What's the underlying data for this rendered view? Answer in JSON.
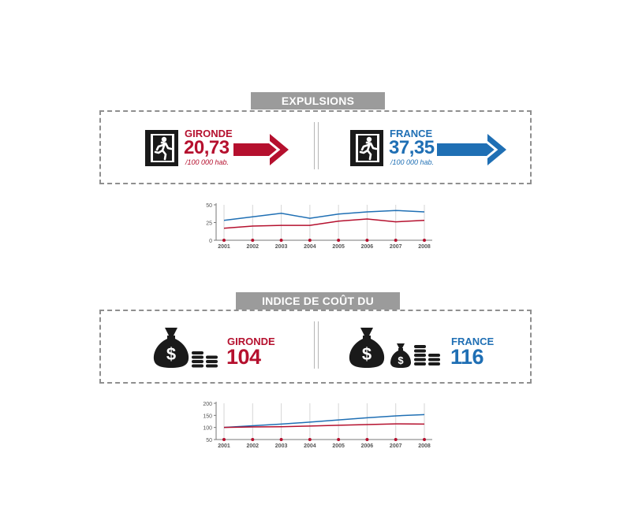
{
  "colors": {
    "gironde": "#b5102e",
    "france": "#1f6fb4",
    "gray": "#9b9b9b",
    "dark": "#1a1a1a"
  },
  "expulsions": {
    "title": "EXPULSIONS LOCATIVES",
    "gironde": {
      "name": "GIRONDE",
      "value": "20,73",
      "unit": "/100 000 hab."
    },
    "france": {
      "name": "FRANCE",
      "value": "37,35",
      "unit": "/100 000 hab."
    }
  },
  "indice": {
    "title": "INDICE DE COÛT DU LOGEMENT",
    "gironde": {
      "name": "GIRONDE",
      "value": "104"
    },
    "france": {
      "name": "FRANCE",
      "value": "116"
    }
  },
  "icons": {
    "exit": "emergency-exit-icon",
    "money": "money-bag-icon",
    "coins": "coin-stack-icon",
    "arrow": "right-arrow-icon"
  },
  "chart_data": [
    {
      "type": "line",
      "categories": [
        "2001",
        "2002",
        "2003",
        "2004",
        "2005",
        "2006",
        "2007",
        "2008"
      ],
      "yticks": [
        "0",
        "25",
        "50"
      ],
      "ylim": [
        0,
        50
      ],
      "series": [
        {
          "name": "FRANCE",
          "color": "#1f6fb4",
          "values": [
            28,
            33,
            38,
            31,
            37,
            40,
            42,
            40
          ]
        },
        {
          "name": "GIRONDE",
          "color": "#b5102e",
          "values": [
            17,
            20,
            21,
            21,
            27,
            30,
            26,
            28
          ]
        }
      ]
    },
    {
      "type": "line",
      "categories": [
        "2001",
        "2002",
        "2003",
        "2004",
        "2005",
        "2006",
        "2007",
        "2008"
      ],
      "yticks": [
        "50",
        "100",
        "150",
        "200"
      ],
      "ylim": [
        50,
        200
      ],
      "series": [
        {
          "name": "FRANCE",
          "color": "#1f6fb4",
          "values": [
            100,
            107,
            114,
            122,
            131,
            140,
            148,
            153
          ]
        },
        {
          "name": "GIRONDE",
          "color": "#b5102e",
          "values": [
            100,
            102,
            103,
            106,
            109,
            112,
            115,
            114
          ]
        }
      ]
    }
  ]
}
